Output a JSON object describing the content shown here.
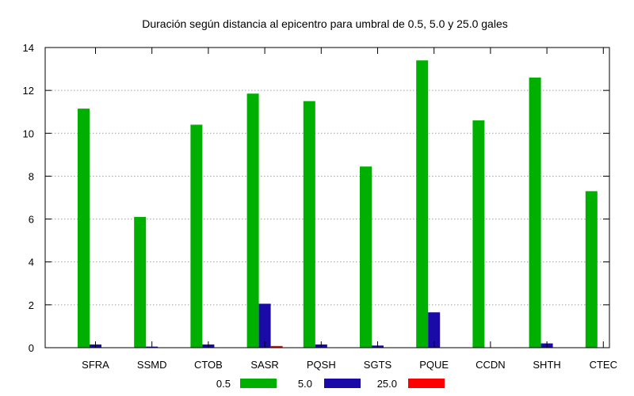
{
  "chart_data": {
    "type": "bar",
    "title": "Duración según distancia al epicentro para umbral de 0.5, 5.0 y 25.0 gales",
    "xlabel": "",
    "ylabel": "",
    "categories": [
      "SFRA",
      "SSMD",
      "CTOB",
      "SASR",
      "PQSH",
      "SGTS",
      "PQUE",
      "CCDN",
      "SHTH",
      "CTEC"
    ],
    "series": [
      {
        "name": "0.5",
        "color": "#00b000",
        "values": [
          11.15,
          6.1,
          10.4,
          11.85,
          11.5,
          8.45,
          13.4,
          10.6,
          12.6,
          7.3
        ]
      },
      {
        "name": "5.0",
        "color": "#1a0aa8",
        "values": [
          0.15,
          0.05,
          0.15,
          2.05,
          0.15,
          0.1,
          1.65,
          0,
          0.2,
          0
        ]
      },
      {
        "name": "25.0",
        "color": "#ff0000",
        "values": [
          0,
          0,
          0,
          0.08,
          0,
          0,
          0,
          0,
          0,
          0
        ]
      }
    ],
    "ylim": [
      0,
      14
    ],
    "yticks": [
      0,
      2,
      4,
      6,
      8,
      10,
      12,
      14
    ],
    "grid": true,
    "legend_position": "bottom"
  }
}
